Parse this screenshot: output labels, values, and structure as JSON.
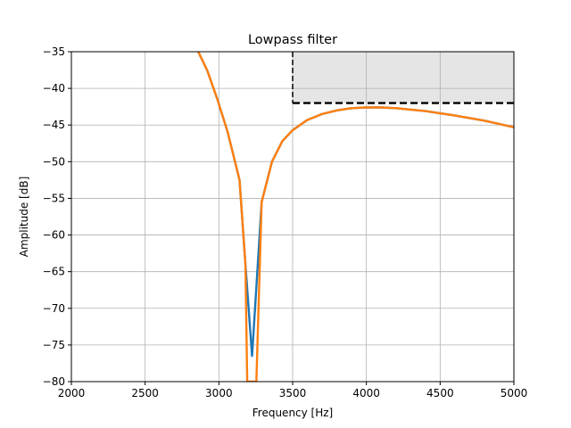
{
  "chart_data": {
    "type": "line",
    "title": "Lowpass filter",
    "xlabel": "Frequency [Hz]",
    "ylabel": "Amplitude [dB]",
    "xlim": [
      2000,
      5000
    ],
    "ylim": [
      -80,
      -35
    ],
    "xticks": [
      "2000",
      "2500",
      "3000",
      "3500",
      "4000",
      "4500",
      "5000"
    ],
    "yticks": [
      "-80",
      "-75",
      "-70",
      "-65",
      "-60",
      "-55",
      "-50",
      "-45",
      "-40",
      "-35"
    ],
    "grid": true,
    "colors": {
      "series_1": "#1f77b4",
      "series_2": "#ff7f0e",
      "stopband_fill": "#e5e5e5",
      "spec_line": "#000000"
    },
    "series": [
      {
        "x": [
          2860,
          2920,
          2990,
          3060,
          3140,
          3180,
          3225,
          3290,
          3360,
          3430,
          3500,
          3600,
          3700,
          3800,
          3900,
          4000,
          4100,
          4200,
          4400,
          4600,
          4800,
          5000
        ],
        "y": [
          -35,
          -37.5,
          -41.5,
          -46,
          -52.5,
          -64,
          -76.5,
          -55.5,
          -50,
          -47.2,
          -45.7,
          -44.3,
          -43.5,
          -43.0,
          -42.7,
          -42.6,
          -42.6,
          -42.7,
          -43.1,
          -43.7,
          -44.4,
          -45.3
        ]
      },
      {
        "x": [
          2860,
          2920,
          2990,
          3060,
          3140,
          3180,
          3192,
          3254,
          3290,
          3360,
          3430,
          3500,
          3600,
          3700,
          3800,
          3900,
          4000,
          4100,
          4200,
          4400,
          4600,
          4800,
          5000
        ],
        "y": [
          -35,
          -37.5,
          -41.5,
          -46,
          -52.5,
          -64,
          -80,
          -80,
          -55.5,
          -50,
          -47.2,
          -45.7,
          -44.3,
          -43.5,
          -43.0,
          -42.7,
          -42.6,
          -42.6,
          -42.7,
          -43.1,
          -43.7,
          -44.4,
          -45.3
        ]
      }
    ],
    "stopband": {
      "x_start": 3500,
      "x_end": 5000,
      "max_db": -42
    }
  }
}
